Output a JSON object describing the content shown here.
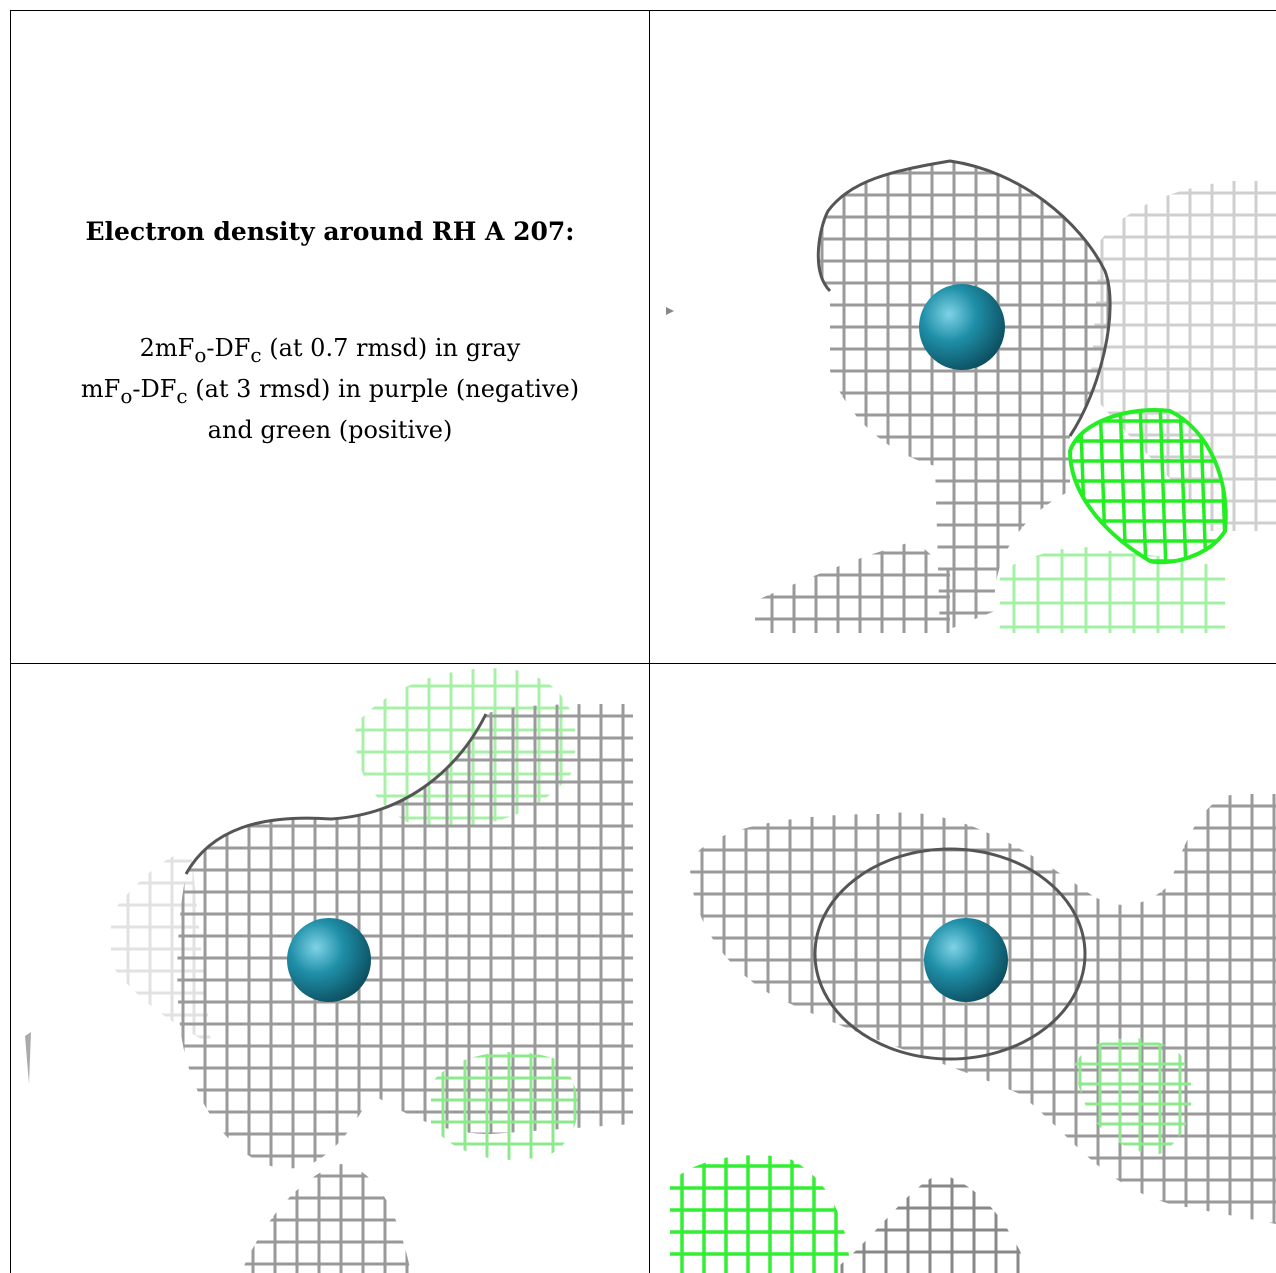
{
  "caption": {
    "title": "Electron density around RH A 207:",
    "line1_prefix": "2mF",
    "line1_sub_o": "o",
    "line1_mid": "-DF",
    "line1_sub_c": "c",
    "line1_suffix": " (at 0.7 rmsd) in gray",
    "line2_prefix": "mF",
    "line2_sub_o": "o",
    "line2_mid": "-DF",
    "line2_sub_c": "c",
    "line2_suffix": " (at 3 rmsd) in purple (negative)",
    "line3": "and green (positive)"
  },
  "colors": {
    "gray_mesh": "#8a8a8a",
    "light_mesh": "#c8c8c8",
    "green_mesh": "#22ee22",
    "light_green_mesh": "#9af09a",
    "atom": "#1f8fa8"
  }
}
